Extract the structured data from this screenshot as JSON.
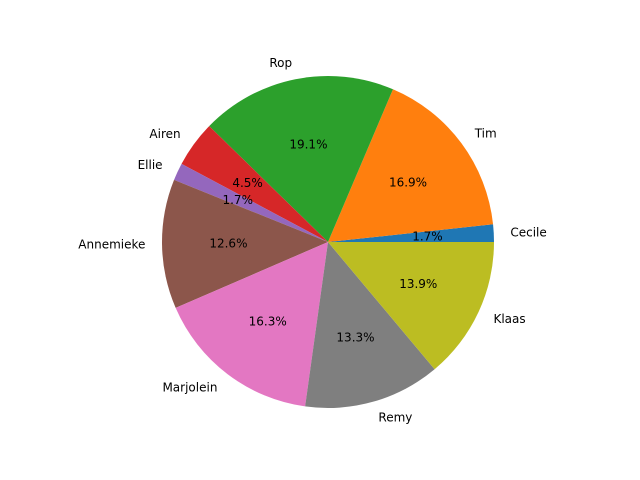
{
  "chart_data": {
    "type": "pie",
    "title": "",
    "categories": [
      "Cecile",
      "Tim",
      "Rop",
      "Airen",
      "Ellie",
      "Annemieke",
      "Marjolein",
      "Remy",
      "Klaas"
    ],
    "values": [
      1.7,
      16.9,
      19.1,
      4.5,
      1.7,
      12.6,
      16.3,
      13.3,
      13.9
    ],
    "value_labels": [
      "1.7%",
      "16.9%",
      "19.1%",
      "4.5%",
      "1.7%",
      "12.6%",
      "16.3%",
      "13.3%",
      "13.9%"
    ],
    "colors": [
      "#1f77b4",
      "#ff7f0e",
      "#2ca02c",
      "#d62728",
      "#9467bd",
      "#8c564b",
      "#e377c2",
      "#7f7f7f",
      "#bcbd22"
    ],
    "start_angle_deg": 0,
    "direction": "counterclockwise",
    "legend": "none"
  }
}
